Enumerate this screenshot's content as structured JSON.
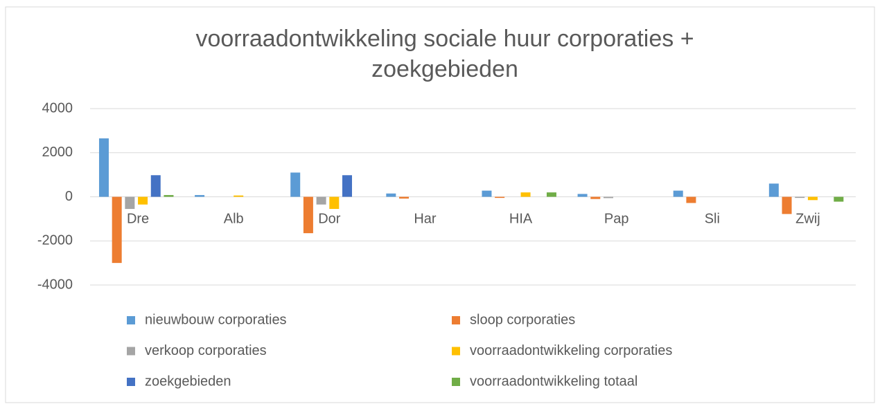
{
  "chart_data": {
    "type": "bar",
    "title": [
      "voorraadontwikkeling sociale huur corporaties +",
      "zoekgebieden"
    ],
    "categories": [
      "Dre",
      "Alb",
      "Dor",
      "Har",
      "HIA",
      "Pap",
      "Sli",
      "Zwij"
    ],
    "series": [
      {
        "name": "nieuwbouw corporaties",
        "color": "#5b9bd5",
        "values": [
          2650,
          80,
          1100,
          150,
          280,
          130,
          280,
          600
        ]
      },
      {
        "name": "sloop corporaties",
        "color": "#ed7d31",
        "values": [
          -3000,
          0,
          -1650,
          -80,
          -50,
          -100,
          -280,
          -780
        ]
      },
      {
        "name": "verkoop corporaties",
        "color": "#a5a5a5",
        "values": [
          -550,
          0,
          -350,
          0,
          0,
          -60,
          0,
          -50
        ]
      },
      {
        "name": "voorraadontwikkeling corporaties",
        "color": "#ffc000",
        "values": [
          -350,
          60,
          -550,
          0,
          200,
          0,
          0,
          -150
        ]
      },
      {
        "name": "zoekgebieden",
        "color": "#4472c4",
        "values": [
          980,
          0,
          980,
          0,
          0,
          0,
          0,
          0
        ]
      },
      {
        "name": "voorraadontwikkeling totaal",
        "color": "#70ad47",
        "values": [
          80,
          0,
          0,
          0,
          200,
          0,
          0,
          -220
        ]
      }
    ],
    "ylim": [
      -4000,
      4000
    ],
    "yticks": [
      4000,
      2000,
      0,
      -2000,
      -4000
    ],
    "grid": true,
    "legend": "bottom"
  }
}
